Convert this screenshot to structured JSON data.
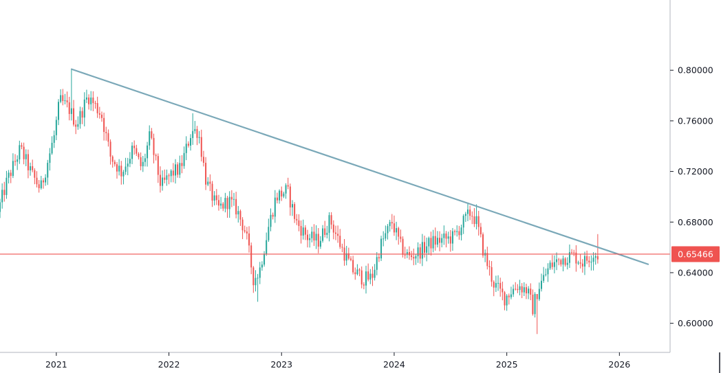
{
  "chart_data": {
    "type": "candlestick",
    "instrument_timeframe": "weekly",
    "y_axis": {
      "ticks": [
        "0.80000",
        "0.76000",
        "0.72000",
        "0.68000",
        "0.64000",
        "0.60000"
      ],
      "tick_values": [
        0.8,
        0.76,
        0.72,
        0.68,
        0.64,
        0.6
      ],
      "ylim": [
        0.577,
        0.8555
      ]
    },
    "x_axis": {
      "ticks": [
        "2021",
        "2022",
        "2023",
        "2024",
        "2025",
        "2026"
      ],
      "tick_years": [
        2021,
        2022,
        2023,
        2024,
        2025,
        2026
      ],
      "xlim": [
        2020.5,
        2026.45
      ]
    },
    "current_price": {
      "label": "0.65466",
      "value": 0.65466,
      "color": "#ef5350"
    },
    "trendline": {
      "color": "#7aa8b8",
      "points": [
        [
          2021.13,
          0.801
        ],
        [
          2026.26,
          0.6465
        ]
      ]
    },
    "colors": {
      "up": "#26a69a",
      "down": "#ef5350",
      "axis": "#131722",
      "background": "#ffffff"
    },
    "anchors": [
      [
        2020.5,
        0.688
      ],
      [
        2020.58,
        0.712
      ],
      [
        2020.7,
        0.738
      ],
      [
        2020.8,
        0.718
      ],
      [
        2020.88,
        0.706
      ],
      [
        2021.0,
        0.748
      ],
      [
        2021.05,
        0.776
      ],
      [
        2021.13,
        0.77
      ],
      [
        2021.2,
        0.757
      ],
      [
        2021.3,
        0.78
      ],
      [
        2021.42,
        0.765
      ],
      [
        2021.5,
        0.732
      ],
      [
        2021.6,
        0.719
      ],
      [
        2021.7,
        0.738
      ],
      [
        2021.78,
        0.722
      ],
      [
        2021.85,
        0.748
      ],
      [
        2021.95,
        0.708
      ],
      [
        2022.05,
        0.719
      ],
      [
        2022.12,
        0.722
      ],
      [
        2022.22,
        0.752
      ],
      [
        2022.28,
        0.752
      ],
      [
        2022.35,
        0.712
      ],
      [
        2022.45,
        0.69
      ],
      [
        2022.55,
        0.697
      ],
      [
        2022.62,
        0.69
      ],
      [
        2022.7,
        0.672
      ],
      [
        2022.77,
        0.635
      ],
      [
        2022.82,
        0.64
      ],
      [
        2022.9,
        0.675
      ],
      [
        2022.97,
        0.7
      ],
      [
        2023.07,
        0.705
      ],
      [
        2023.15,
        0.68
      ],
      [
        2023.25,
        0.668
      ],
      [
        2023.35,
        0.665
      ],
      [
        2023.45,
        0.682
      ],
      [
        2023.55,
        0.66
      ],
      [
        2023.65,
        0.642
      ],
      [
        2023.75,
        0.635
      ],
      [
        2023.82,
        0.636
      ],
      [
        2023.9,
        0.662
      ],
      [
        2024.0,
        0.68
      ],
      [
        2024.08,
        0.66
      ],
      [
        2024.15,
        0.652
      ],
      [
        2024.25,
        0.657
      ],
      [
        2024.35,
        0.664
      ],
      [
        2024.45,
        0.666
      ],
      [
        2024.55,
        0.668
      ],
      [
        2024.62,
        0.678
      ],
      [
        2024.7,
        0.688
      ],
      [
        2024.75,
        0.68
      ],
      [
        2024.82,
        0.654
      ],
      [
        2024.9,
        0.632
      ],
      [
        2025.0,
        0.62
      ],
      [
        2025.05,
        0.625
      ],
      [
        2025.12,
        0.63
      ],
      [
        2025.2,
        0.626
      ],
      [
        2025.25,
        0.612
      ],
      [
        2025.3,
        0.628
      ],
      [
        2025.4,
        0.645
      ],
      [
        2025.5,
        0.651
      ],
      [
        2025.6,
        0.654
      ],
      [
        2025.7,
        0.648
      ],
      [
        2025.78,
        0.655
      ],
      [
        2025.82,
        0.654
      ]
    ],
    "extremes": [
      {
        "x": 2021.13,
        "high": 0.801,
        "low": 0.771
      },
      {
        "x": 2022.22,
        "high": 0.766,
        "low": 0.741
      },
      {
        "x": 2022.79,
        "high": 0.639,
        "low": 0.617
      },
      {
        "x": 2024.73,
        "high": 0.694,
        "low": 0.676
      },
      {
        "x": 2025.27,
        "high": 0.619,
        "low": 0.5915
      },
      {
        "x": 2025.8,
        "high": 0.6705,
        "low": 0.65
      }
    ]
  }
}
